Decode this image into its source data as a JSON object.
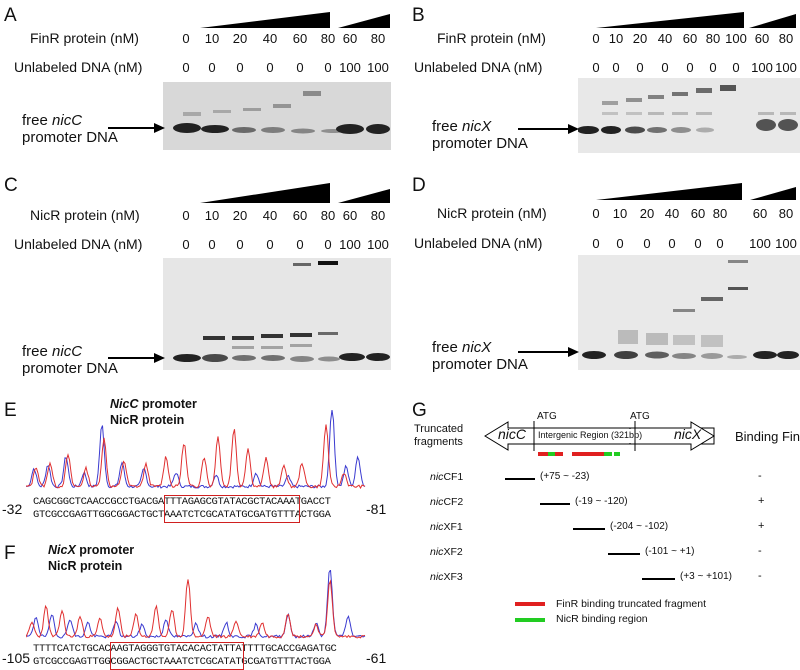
{
  "panels": {
    "A": {
      "letter": "A",
      "protein_label": "FinR protein (nM)",
      "unlabeled_label": "Unlabeled DNA (nM)",
      "protein_values": [
        "0",
        "10",
        "20",
        "40",
        "60",
        "80",
        "60",
        "80"
      ],
      "unlabeled_values": [
        "0",
        "0",
        "0",
        "0",
        "0",
        "0",
        "100",
        "100"
      ],
      "free_label_prefix": "free ",
      "free_label_gene": "nicC",
      "free_label_line2": "promoter DNA"
    },
    "B": {
      "letter": "B",
      "protein_label": "FinR protein (nM)",
      "unlabeled_label": "Unlabeled DNA (nM)",
      "protein_values": [
        "0",
        "10",
        "20",
        "40",
        "60",
        "80",
        "100",
        "60",
        "80"
      ],
      "unlabeled_values": [
        "0",
        "0",
        "0",
        "0",
        "0",
        "0",
        "0",
        "100",
        "100"
      ],
      "free_label_prefix": "free ",
      "free_label_gene": "nicX",
      "free_label_line2": "promoter DNA"
    },
    "C": {
      "letter": "C",
      "protein_label": "NicR protein (nM)",
      "unlabeled_label": "Unlabeled DNA (nM)",
      "protein_values": [
        "0",
        "10",
        "20",
        "40",
        "60",
        "80",
        "60",
        "80"
      ],
      "unlabeled_values": [
        "0",
        "0",
        "0",
        "0",
        "0",
        "0",
        "100",
        "100"
      ],
      "free_label_prefix": "free ",
      "free_label_gene": "nicC",
      "free_label_line2": "promoter DNA"
    },
    "D": {
      "letter": "D",
      "protein_label": "NicR protein (nM)",
      "unlabeled_label": "Unlabeled DNA (nM)",
      "protein_values": [
        "0",
        "10",
        "20",
        "40",
        "60",
        "80",
        "60",
        "80"
      ],
      "unlabeled_values": [
        "0",
        "0",
        "0",
        "0",
        "0",
        "0",
        "100",
        "100"
      ],
      "free_label_prefix": "free ",
      "free_label_gene": "nicX",
      "free_label_line2": "promoter DNA"
    },
    "E": {
      "letter": "E",
      "title_gene": "NicC",
      "title_rest": " promoter",
      "subtitle": "NicR protein",
      "left_coord": "-32",
      "right_coord": "-81",
      "seq_top": "CAGCGGCTCAACCGCCTGACGATTTAGAGCGTATACGCTACAAATGACCT",
      "seq_bottom": "GTCGCCGAGTTGGCGGACTGCTAAATCTCGCATATGCGATGTTTACTGGA"
    },
    "F": {
      "letter": "F",
      "title_gene": "NicX",
      "title_rest": " promoter",
      "subtitle": "NicR protein",
      "left_coord": "-105",
      "right_coord": "-61",
      "seq_top": "TTTTCATCTGCACAAGTAGGGTGTACACACTATTATTTTGCACCGAGATGC",
      "seq_bottom": "GTCGCCGAGTTGGCGGACTGCTAAATCTCGCATATGCGATGTTTACTGGA"
    },
    "G": {
      "letter": "G",
      "truncated_label_1": "Truncated",
      "truncated_label_2": "fragments",
      "gene_left": "nicC",
      "gene_right": "nicX",
      "region_label": "Intergenic Region (321bp)",
      "atg": "ATG",
      "binding_header": "Binding FinR",
      "fragments": [
        {
          "gene": "nic",
          "suffix": "CF1",
          "range": "(+75 ~ -23)",
          "binding": "-"
        },
        {
          "gene": "nic",
          "suffix": "CF2",
          "range": "(-19 ~ -120)",
          "binding": "+"
        },
        {
          "gene": "nic",
          "suffix": "XF1",
          "range": "(-204 ~ -102)",
          "binding": "+"
        },
        {
          "gene": "nic",
          "suffix": "XF2",
          "range": "(-101 ~ +1)",
          "binding": "-"
        },
        {
          "gene": "nic",
          "suffix": "XF3",
          "range": "(+3 ~ +101)",
          "binding": "-"
        }
      ],
      "legend": [
        {
          "label": "FinR binding truncated fragment",
          "color": "#e02020"
        },
        {
          "label": "NicR binding region",
          "color": "#22cc22"
        }
      ]
    }
  },
  "colors": {
    "trace_red": "#e03030",
    "trace_blue": "#3a3ad0",
    "box": "#d02020"
  }
}
